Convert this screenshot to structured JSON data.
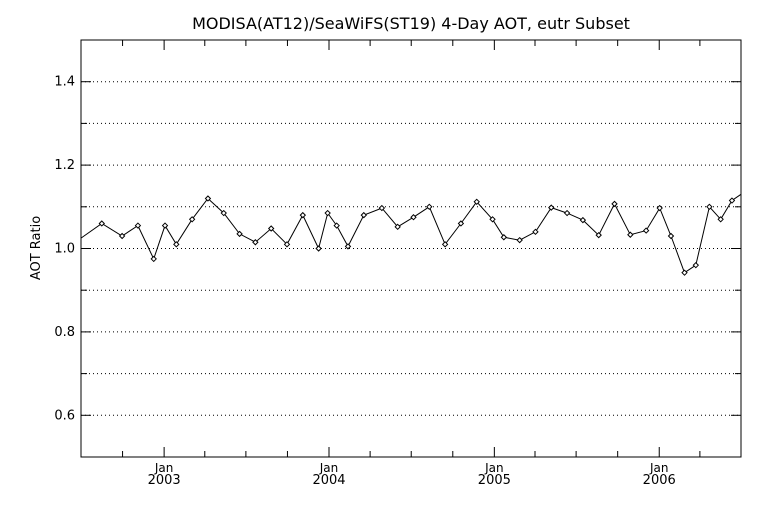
{
  "chart_data": {
    "type": "line",
    "title": "MODISA(AT12)/SeaWiFS(ST19) 4-Day AOT, eutr Subset",
    "ylabel": "AOT Ratio",
    "xlabel": "",
    "ylim": [
      0.5,
      1.5
    ],
    "xlim": [
      "2002-07-01",
      "2006-07-01"
    ],
    "grid": "horizontal dotted",
    "x_ticks": [
      {
        "date": "2003-01-01",
        "month": "Jan",
        "year": "2003"
      },
      {
        "date": "2004-01-01",
        "month": "Jan",
        "year": "2004"
      },
      {
        "date": "2005-01-01",
        "month": "Jan",
        "year": "2005"
      },
      {
        "date": "2006-01-01",
        "month": "Jan",
        "year": "2006"
      }
    ],
    "y_ticks": [
      {
        "value": 0.6,
        "label": "0.6"
      },
      {
        "value": 0.8,
        "label": "0.8"
      },
      {
        "value": 1.0,
        "label": "1.0"
      },
      {
        "value": 1.2,
        "label": "1.2"
      },
      {
        "value": 1.4,
        "label": "1.4"
      }
    ],
    "series": [
      {
        "color": "#000000",
        "x": [
          "2002-07-01",
          "2002-08-16",
          "2002-09-30",
          "2002-11-04",
          "2002-12-09",
          "2003-01-03",
          "2003-01-28",
          "2003-03-04",
          "2003-04-08",
          "2003-05-13",
          "2003-06-17",
          "2003-07-22",
          "2003-08-26",
          "2003-09-30",
          "2003-11-04",
          "2003-12-09",
          "2003-12-29",
          "2004-01-18",
          "2004-02-12",
          "2004-03-18",
          "2004-04-27",
          "2004-06-01",
          "2004-07-06",
          "2004-08-10",
          "2004-09-14",
          "2004-10-19",
          "2004-11-23",
          "2004-12-28",
          "2005-01-22",
          "2005-02-26",
          "2005-04-02",
          "2005-05-07",
          "2005-06-11",
          "2005-07-16",
          "2005-08-20",
          "2005-09-24",
          "2005-10-29",
          "2005-12-03",
          "2006-01-02",
          "2006-01-27",
          "2006-02-26",
          "2006-03-23",
          "2006-04-22",
          "2006-05-17",
          "2006-06-11",
          "2006-07-01"
        ],
        "y": [
          1.025,
          1.06,
          1.03,
          1.055,
          0.975,
          1.055,
          1.01,
          1.07,
          1.12,
          1.085,
          1.035,
          1.015,
          1.048,
          1.01,
          1.08,
          1.0,
          1.085,
          1.055,
          1.005,
          1.08,
          1.097,
          1.052,
          1.075,
          1.1,
          1.01,
          1.06,
          1.112,
          1.07,
          1.027,
          1.02,
          1.04,
          1.098,
          1.085,
          1.068,
          1.032,
          1.107,
          1.033,
          1.043,
          1.097,
          1.03,
          0.942,
          0.96,
          1.1,
          1.07,
          1.115,
          1.13
        ]
      }
    ]
  }
}
